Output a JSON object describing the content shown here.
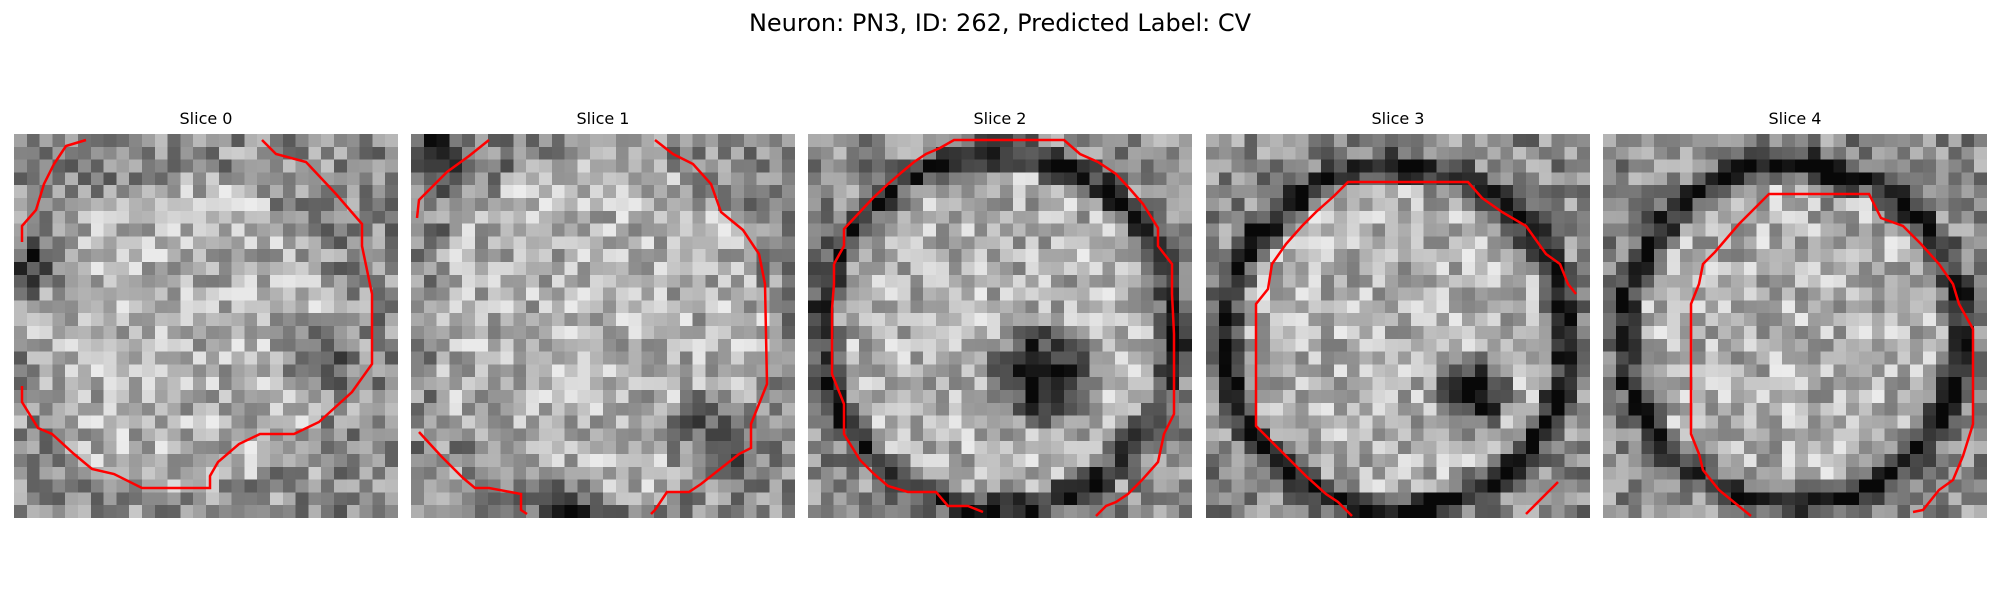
{
  "figure": {
    "title": "Neuron: PN3, ID: 262, Predicted Label: CV",
    "contour_color": "#ff0000"
  },
  "slices": [
    {
      "title": "Slice 0",
      "feature": "none"
    },
    {
      "title": "Slice 1",
      "feature": "none"
    },
    {
      "title": "Slice 2",
      "feature": "dark-nucleolus"
    },
    {
      "title": "Slice 3",
      "feature": "dark-nucleolus"
    },
    {
      "title": "Slice 4",
      "feature": "none"
    }
  ]
}
